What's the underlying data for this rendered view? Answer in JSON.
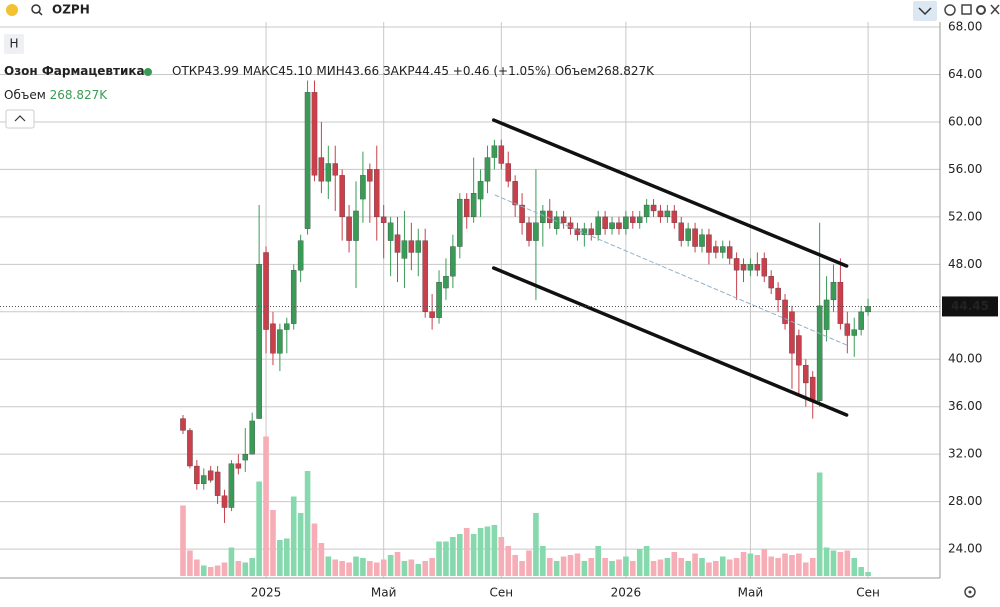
{
  "ui": {
    "search": "OZPH",
    "interval_button": "Н"
  },
  "chart_data": {
    "type": "candlestick",
    "title": "Озон Фармацевтика",
    "legend_labels": {
      "open": "ОТКР",
      "high": "МАКС",
      "low": "МИН",
      "close": "ЗАКР",
      "change": "+0.46 (+1.05%)",
      "volume": "Объем",
      "volume_value": "268.827K"
    },
    "last_candle_labels": {
      "open": "43.99",
      "high": "45.10",
      "low": "43.66",
      "close": "44.45"
    },
    "categories": [
      null,
      null,
      null,
      null,
      null,
      null,
      null,
      null,
      null,
      null,
      null,
      null,
      "2025",
      null,
      null,
      null,
      null,
      null,
      null,
      null,
      null,
      null,
      null,
      null,
      null,
      null,
      null,
      null,
      null,
      "Май",
      null,
      null,
      null,
      null,
      null,
      null,
      null,
      null,
      null,
      null,
      null,
      null,
      null,
      null,
      null,
      null,
      "Сен",
      null,
      null,
      null,
      null,
      null,
      null,
      null,
      null,
      null,
      null,
      null,
      null,
      null,
      null,
      null,
      null,
      null,
      "2026",
      null,
      null,
      null,
      null,
      null,
      null,
      null,
      null,
      null,
      null,
      null,
      null,
      null,
      null,
      null,
      null,
      null,
      "Май",
      null,
      null,
      null,
      null,
      null,
      null,
      null,
      null,
      null,
      null,
      null,
      null,
      null,
      null,
      null,
      null,
      "Сен"
    ],
    "open": [
      35,
      34,
      31,
      29.5,
      30.6,
      30.5,
      28.5,
      27.5,
      31.2,
      31.5,
      32,
      35,
      49,
      43,
      40.5,
      42.5,
      43,
      47.5,
      51,
      62.5,
      57,
      55,
      56.5,
      55.5,
      52,
      50,
      53.5,
      56,
      56,
      52,
      50,
      50.5,
      48.5,
      50,
      49,
      50,
      44,
      43.5,
      46,
      47,
      49.5,
      53.5,
      52,
      53.5,
      55,
      57,
      58,
      56.5,
      55,
      53,
      51.5,
      50,
      51.5,
      52.5,
      51,
      52,
      51.5,
      51,
      50.5,
      51,
      50.5,
      52,
      51,
      51.5,
      51,
      52,
      51.5,
      52,
      53,
      52.5,
      52,
      52.5,
      51.5,
      50,
      51,
      49.5,
      50.5,
      49.5,
      49,
      49.5,
      48.5,
      48,
      47.5,
      48,
      48.5,
      47,
      46,
      45,
      44,
      42,
      39.5,
      38.5,
      36.5,
      42.5,
      45,
      46.5,
      43,
      42,
      42.5,
      43.99
    ],
    "high": [
      35.3,
      34.2,
      31.5,
      30.8,
      31,
      31,
      29,
      31.5,
      32,
      34.2,
      35.5,
      53,
      49.5,
      44,
      43,
      43.5,
      48,
      50.5,
      63.5,
      63.5,
      60,
      58,
      58,
      56,
      53,
      55,
      57.5,
      56.5,
      58,
      53,
      52,
      52,
      52.5,
      51.5,
      51,
      51,
      45.5,
      47.5,
      48.5,
      50.5,
      54,
      54,
      57,
      56,
      58,
      58.5,
      58.5,
      57.5,
      55.5,
      54,
      52,
      56,
      53,
      53.5,
      52.5,
      52.5,
      52,
      51.5,
      51.5,
      51.5,
      52.5,
      52.5,
      52,
      52,
      52.5,
      52.5,
      52.5,
      53.5,
      53.5,
      53,
      53,
      53,
      52,
      51.5,
      51.5,
      51,
      51,
      50,
      50,
      50,
      49,
      48.5,
      48.5,
      49,
      49,
      47.5,
      46.5,
      45.5,
      44.5,
      42.5,
      40,
      39,
      51.5,
      47,
      48,
      48.5,
      44,
      43.5,
      44.5,
      45.1
    ],
    "low": [
      33.7,
      30.8,
      29,
      29,
      29.6,
      27.8,
      26.2,
      27.2,
      30.3,
      30.5,
      32,
      35,
      40.5,
      39.5,
      39,
      40.5,
      42.5,
      46.5,
      50.5,
      55,
      54,
      53.5,
      52.5,
      50,
      49,
      46,
      51.5,
      51.5,
      50,
      48.5,
      47,
      46.5,
      46,
      47.5,
      47,
      43.5,
      42.5,
      43,
      45,
      46,
      48.5,
      51,
      51.5,
      52,
      54,
      56,
      56,
      54.5,
      52,
      50.5,
      49.5,
      45,
      49.5,
      51,
      50.5,
      51,
      50.5,
      50,
      49.5,
      50,
      50,
      50.5,
      50.5,
      50.5,
      50.5,
      51,
      51,
      51.5,
      52,
      51.5,
      51.5,
      51,
      49.5,
      49.5,
      49,
      49,
      48,
      48.5,
      48.5,
      48,
      45,
      46.5,
      47,
      47,
      46.5,
      45.5,
      44,
      42.5,
      37.5,
      37,
      36,
      35,
      36,
      41.5,
      44,
      42.5,
      40.5,
      40.2,
      42,
      43.66
    ],
    "close": [
      34,
      31,
      29.5,
      30.2,
      29.8,
      28.5,
      27.5,
      31.2,
      30.8,
      32,
      34.8,
      48,
      42.5,
      40.5,
      42.5,
      43,
      47.5,
      50,
      62.5,
      55.5,
      55,
      56.5,
      55.5,
      52,
      50,
      52.5,
      55.5,
      55,
      52,
      51.5,
      51.5,
      49,
      50,
      49,
      50,
      44,
      43.5,
      46.5,
      47,
      49.5,
      53.5,
      52,
      54,
      55,
      57,
      58,
      56.5,
      55,
      53,
      51.5,
      50,
      51.5,
      52.5,
      51.5,
      52,
      51.5,
      51,
      50.5,
      51,
      50.5,
      52,
      51,
      51.5,
      51,
      52,
      51.5,
      52,
      53,
      52.5,
      52,
      52.5,
      51.5,
      50,
      51,
      49.5,
      50.5,
      49,
      49,
      49.5,
      48.5,
      47.5,
      47.5,
      48,
      47.5,
      47,
      46,
      45,
      43,
      40.5,
      39.5,
      38,
      36.5,
      44.5,
      45,
      46.5,
      43,
      42,
      42.5,
      43.99,
      44.45
    ],
    "volume": [
      4700000,
      1700000,
      1100000,
      700000,
      600000,
      700000,
      900000,
      1900000,
      1000000,
      900000,
      1200000,
      6300000,
      9300000,
      4400000,
      2400000,
      2500000,
      5300000,
      4200000,
      7000000,
      3500000,
      2200000,
      1300000,
      1100000,
      1000000,
      900000,
      1300000,
      1200000,
      1000000,
      900000,
      1100000,
      1400000,
      1600000,
      1000000,
      1100000,
      800000,
      1000000,
      1200000,
      2300000,
      2300000,
      2600000,
      2800000,
      3200000,
      2800000,
      3200000,
      3300000,
      3400000,
      2600000,
      2000000,
      1400000,
      1000000,
      1700000,
      4200000,
      2000000,
      1200000,
      1000000,
      1300000,
      1400000,
      1500000,
      1000000,
      1200000,
      2000000,
      1200000,
      1000000,
      1100000,
      1300000,
      1000000,
      1800000,
      2000000,
      1000000,
      1100000,
      1200000,
      1600000,
      1200000,
      1000000,
      1500000,
      1200000,
      900000,
      1000000,
      1300000,
      1100000,
      1200000,
      1600000,
      1500000,
      1400000,
      1800000,
      1300000,
      1200000,
      1500000,
      1400000,
      1500000,
      900000,
      1200000,
      6900000,
      1900000,
      1700000,
      1600000,
      1700000,
      1200000,
      600000,
      268827
    ],
    "ylim": [
      21.73,
      70.28
    ],
    "yticks": [
      {
        "value": 24,
        "label": "24.00"
      },
      {
        "value": 28,
        "label": "28.00"
      },
      {
        "value": 32,
        "label": "32.00"
      },
      {
        "value": 36,
        "label": "36.00"
      },
      {
        "value": 40,
        "label": "40.00"
      },
      {
        "value": 44,
        "label": "44.00"
      },
      {
        "value": 48,
        "label": "48.00"
      },
      {
        "value": 52,
        "label": "52.00"
      },
      {
        "value": 56,
        "label": "56.00"
      },
      {
        "value": 60,
        "label": "60.00"
      },
      {
        "value": 64,
        "label": "64.00"
      },
      {
        "value": 68,
        "label": "68.00"
      }
    ],
    "volume_lim": [
      0,
      10000000
    ],
    "grid": true,
    "last_price_line": true,
    "up_color": "#3a9b57",
    "down_color": "#c9404c",
    "up_volume_color": "#86d8ad",
    "down_volume_color": "#f6adb5",
    "channel": [
      {
        "x": [
          44.9,
          95.9
        ],
        "y": [
          60.16,
          47.86
        ],
        "color": "#111111",
        "style": "solid"
      },
      {
        "x": [
          44.9,
          95.9
        ],
        "y": [
          47.69,
          35.3
        ],
        "color": "#111111",
        "style": "solid"
      },
      {
        "x": [
          45.1,
          95.9
        ],
        "y": [
          53.84,
          41.2
        ],
        "color": "#8fb3c9",
        "style": "dashed"
      }
    ]
  }
}
